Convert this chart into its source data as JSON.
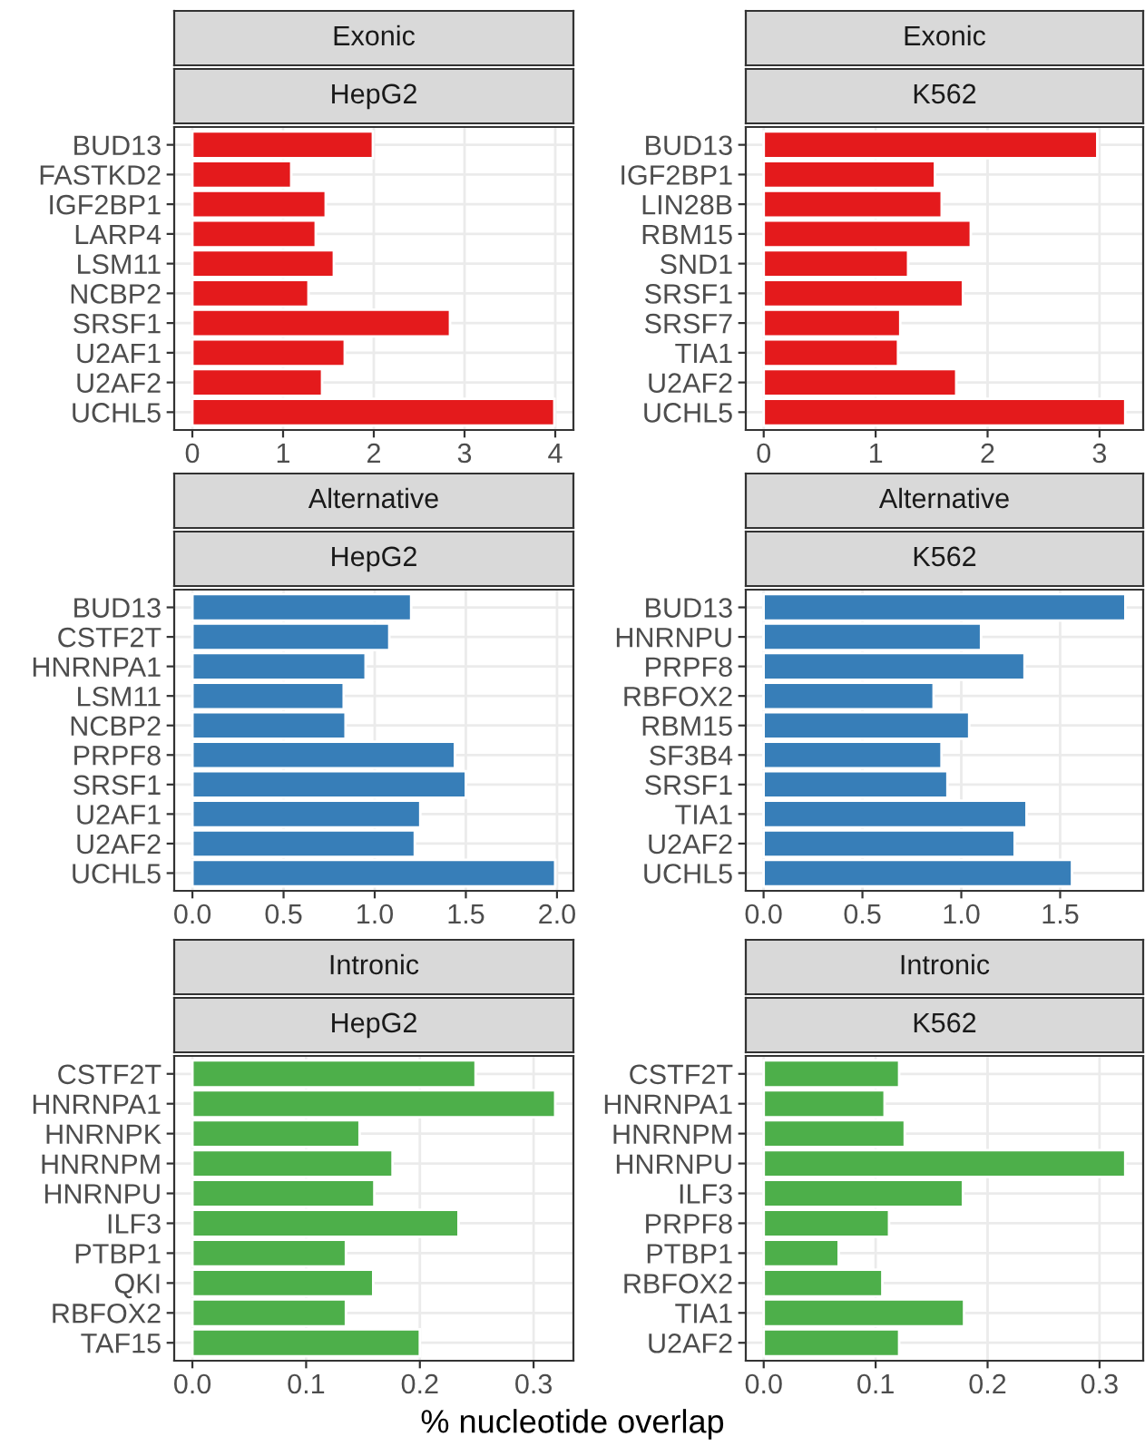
{
  "chart_data": [
    {
      "type": "bar",
      "orientation": "horizontal",
      "title": "Exonic",
      "subtitle": "HepG2",
      "color": "#e41a1c",
      "grid": true,
      "categories": [
        "BUD13",
        "FASTKD2",
        "IGF2BP1",
        "LARP4",
        "LSM11",
        "NCBP2",
        "SRSF1",
        "U2AF1",
        "U2AF2",
        "UCHL5"
      ],
      "values": [
        1.99,
        1.09,
        1.47,
        1.36,
        1.56,
        1.28,
        2.84,
        1.68,
        1.43,
        3.99
      ],
      "xlim": [
        -0.2,
        4.2
      ],
      "xticks": [
        0,
        1,
        2,
        3,
        4
      ]
    },
    {
      "type": "bar",
      "orientation": "horizontal",
      "title": "Exonic",
      "subtitle": "K562",
      "color": "#e41a1c",
      "grid": true,
      "categories": [
        "BUD13",
        "IGF2BP1",
        "LIN28B",
        "RBM15",
        "SND1",
        "SRSF1",
        "SRSF7",
        "TIA1",
        "U2AF2",
        "UCHL5"
      ],
      "values": [
        2.98,
        1.53,
        1.59,
        1.85,
        1.29,
        1.78,
        1.22,
        1.2,
        1.72,
        3.23
      ],
      "xlim": [
        -0.16,
        3.39
      ],
      "xticks": [
        0,
        1,
        2,
        3
      ]
    },
    {
      "type": "bar",
      "orientation": "horizontal",
      "title": "Alternative",
      "subtitle": "HepG2",
      "color": "#377eb8",
      "grid": true,
      "categories": [
        "BUD13",
        "CSTF2T",
        "HNRNPA1",
        "LSM11",
        "NCBP2",
        "PRPF8",
        "SRSF1",
        "U2AF1",
        "U2AF2",
        "UCHL5"
      ],
      "values": [
        1.2,
        1.08,
        0.95,
        0.83,
        0.84,
        1.44,
        1.5,
        1.25,
        1.22,
        1.99
      ],
      "xlim": [
        -0.1,
        2.09
      ],
      "xticks": [
        {
          "value": 0,
          "label": "0.0"
        },
        {
          "value": 0.5,
          "label": "0.5"
        },
        {
          "value": 1,
          "label": "1.0"
        },
        {
          "value": 1.5,
          "label": "1.5"
        },
        {
          "value": 2,
          "label": "2.0"
        }
      ]
    },
    {
      "type": "bar",
      "orientation": "horizontal",
      "title": "Alternative",
      "subtitle": "K562",
      "color": "#377eb8",
      "grid": true,
      "categories": [
        "BUD13",
        "HNRNPU",
        "PRPF8",
        "RBFOX2",
        "RBM15",
        "SF3B4",
        "SRSF1",
        "TIA1",
        "U2AF2",
        "UCHL5"
      ],
      "values": [
        1.83,
        1.1,
        1.32,
        0.86,
        1.04,
        0.9,
        0.93,
        1.33,
        1.27,
        1.56
      ],
      "xlim": [
        -0.09,
        1.92
      ],
      "xticks": [
        {
          "value": 0,
          "label": "0.0"
        },
        {
          "value": 0.5,
          "label": "0.5"
        },
        {
          "value": 1,
          "label": "1.0"
        },
        {
          "value": 1.5,
          "label": "1.5"
        }
      ]
    },
    {
      "type": "bar",
      "orientation": "horizontal",
      "title": "Intronic",
      "subtitle": "HepG2",
      "color": "#4daf4a",
      "grid": true,
      "categories": [
        "CSTF2T",
        "HNRNPA1",
        "HNRNPK",
        "HNRNPM",
        "HNRNPU",
        "ILF3",
        "PTBP1",
        "QKI",
        "RBFOX2",
        "TAF15"
      ],
      "values": [
        0.249,
        0.319,
        0.147,
        0.176,
        0.16,
        0.234,
        0.135,
        0.159,
        0.135,
        0.2
      ],
      "xlim": [
        -0.016,
        0.335
      ],
      "xticks": [
        {
          "value": 0,
          "label": "0.0"
        },
        {
          "value": 0.1,
          "label": "0.1"
        },
        {
          "value": 0.2,
          "label": "0.2"
        },
        {
          "value": 0.3,
          "label": "0.3"
        }
      ]
    },
    {
      "type": "bar",
      "orientation": "horizontal",
      "title": "Intronic",
      "subtitle": "K562",
      "color": "#4daf4a",
      "grid": true,
      "xlabel": "% nucleotide overlap",
      "categories": [
        "CSTF2T",
        "HNRNPA1",
        "HNRNPM",
        "HNRNPU",
        "ILF3",
        "PRPF8",
        "PTBP1",
        "RBFOX2",
        "TIA1",
        "U2AF2"
      ],
      "values": [
        0.121,
        0.108,
        0.126,
        0.323,
        0.178,
        0.112,
        0.067,
        0.106,
        0.179,
        0.121
      ],
      "xlim": [
        -0.016,
        0.339
      ],
      "xticks": [
        {
          "value": 0,
          "label": "0.0"
        },
        {
          "value": 0.1,
          "label": "0.1"
        },
        {
          "value": 0.2,
          "label": "0.2"
        },
        {
          "value": 0.3,
          "label": "0.3"
        }
      ]
    }
  ]
}
